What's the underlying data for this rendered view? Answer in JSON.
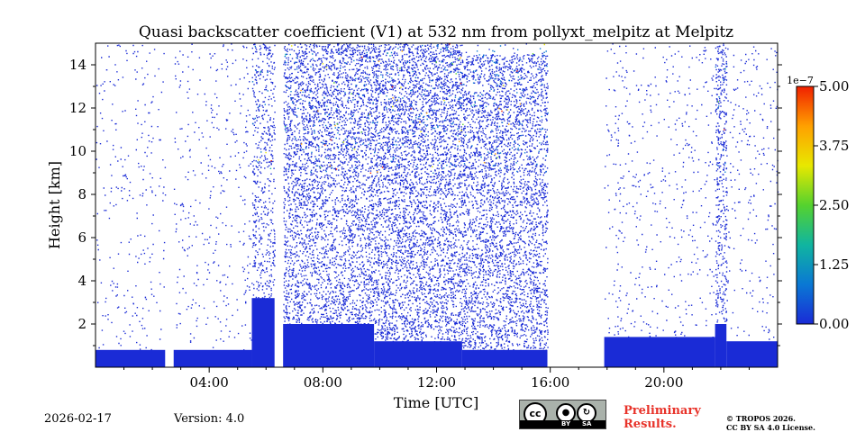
{
  "chart_data": {
    "type": "heatmap",
    "title": "Quasi backscatter coefficient (V1) at 532 nm from pollyxt_melpitz at Melpitz",
    "xlabel": "Time [UTC]",
    "ylabel": "Height [km]",
    "xlim": [
      0,
      24
    ],
    "ylim": [
      0,
      15
    ],
    "x_ticks": [
      4,
      8,
      12,
      16,
      20
    ],
    "x_tick_labels": [
      "04:00",
      "08:00",
      "12:00",
      "16:00",
      "20:00"
    ],
    "y_ticks": [
      2,
      4,
      6,
      8,
      10,
      12,
      14
    ],
    "y_tick_labels": [
      "2",
      "4",
      "6",
      "8",
      "10",
      "12",
      "14"
    ],
    "colorbar": {
      "range": [
        0,
        5e-07
      ],
      "ticks": [
        0,
        1.25,
        2.5,
        3.75,
        5.0
      ],
      "tick_labels": [
        "0.00",
        "1.25",
        "2.50",
        "3.75",
        "5.00"
      ],
      "multiplier": "1e−7",
      "colors": [
        "#1a2bd6",
        "#0a78d4",
        "#10b5a0",
        "#55d22e",
        "#e8e800",
        "#ffa000",
        "#f02000"
      ]
    },
    "signal_segments": [
      {
        "t0": 0.0,
        "t1": 2.45,
        "base_top_km": 0.8,
        "sparse_top_km": 15,
        "density": 0.05
      },
      {
        "t0": 2.75,
        "t1": 5.5,
        "base_top_km": 0.8,
        "sparse_top_km": 15,
        "density": 0.06
      },
      {
        "t0": 5.5,
        "t1": 6.3,
        "base_top_km": 3.2,
        "sparse_top_km": 15,
        "density": 0.35
      },
      {
        "t0": 6.6,
        "t1": 9.8,
        "base_top_km": 2.0,
        "sparse_top_km": 15,
        "density": 0.55
      },
      {
        "t0": 9.8,
        "t1": 12.9,
        "base_top_km": 1.2,
        "sparse_top_km": 15,
        "density": 0.6
      },
      {
        "t0": 12.9,
        "t1": 15.9,
        "base_top_km": 0.8,
        "sparse_top_km": 14.5,
        "density": 0.55
      },
      {
        "t0": 17.9,
        "t1": 21.8,
        "base_top_km": 1.4,
        "sparse_top_km": 15,
        "density": 0.06
      },
      {
        "t0": 21.8,
        "t1": 22.2,
        "base_top_km": 2.0,
        "sparse_top_km": 15,
        "density": 0.5
      },
      {
        "t0": 22.2,
        "t1": 24.0,
        "base_top_km": 1.2,
        "sparse_top_km": 15,
        "density": 0.06
      }
    ],
    "gaps_utc": [
      [
        2.45,
        2.75
      ],
      [
        6.3,
        6.6
      ],
      [
        15.9,
        17.9
      ]
    ]
  },
  "footer": {
    "date": "2026-02-17",
    "version": "Version: 4.0",
    "preliminary_line1": "Preliminary",
    "preliminary_line2": "Results.",
    "copyright_line1": "© TROPOS 2026.",
    "copyright_line2": "CC BY SA 4.0 License.",
    "license_by": "BY",
    "license_sa": "SA"
  }
}
